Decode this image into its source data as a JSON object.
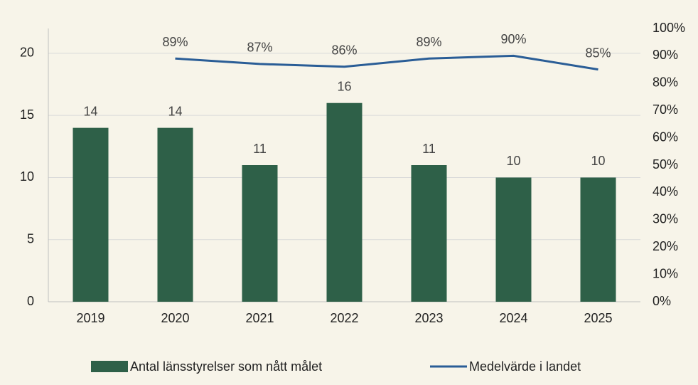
{
  "chart_data": {
    "type": "bar",
    "categories": [
      "2019",
      "2020",
      "2021",
      "2022",
      "2023",
      "2024",
      "2025"
    ],
    "series": [
      {
        "name": "Antal länsstyrelser som nått målet",
        "type": "bar",
        "color": "#2e6048",
        "values": [
          14,
          14,
          11,
          16,
          11,
          10,
          10
        ]
      },
      {
        "name": "Medelvärde i landet",
        "type": "line",
        "axis": "y2",
        "color": "#2a5d96",
        "values": [
          null,
          89,
          87,
          86,
          89,
          90,
          85
        ],
        "value_labels": [
          null,
          "89%",
          "87%",
          "86%",
          "89%",
          "90%",
          "85%"
        ]
      }
    ],
    "ylim": [
      0,
      22
    ],
    "yticks": [
      0,
      5,
      10,
      15,
      20
    ],
    "y2lim": [
      0,
      100
    ],
    "y2ticks": [
      {
        "value": 0,
        "label": "0%"
      },
      {
        "value": 10,
        "label": "10%"
      },
      {
        "value": 20,
        "label": "20%"
      },
      {
        "value": 30,
        "label": "30%"
      },
      {
        "value": 40,
        "label": "40%"
      },
      {
        "value": 50,
        "label": "50%"
      },
      {
        "value": 60,
        "label": "60%"
      },
      {
        "value": 70,
        "label": "70%"
      },
      {
        "value": 80,
        "label": "80%"
      },
      {
        "value": 90,
        "label": "90%"
      },
      {
        "value": 100,
        "label": "100%"
      }
    ],
    "grid": true,
    "legend": "bottom"
  }
}
